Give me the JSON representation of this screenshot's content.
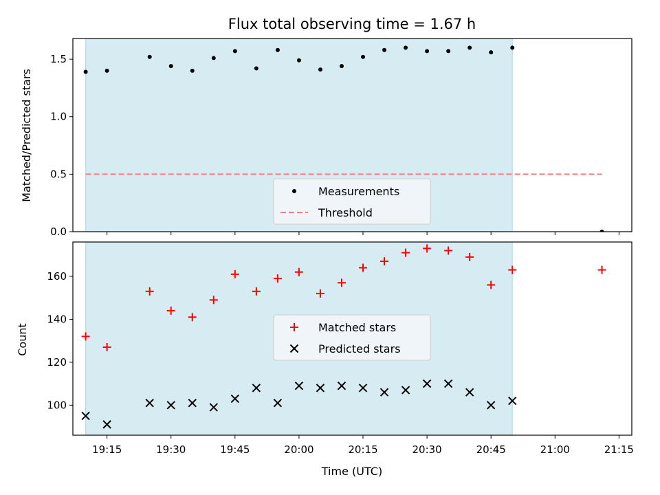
{
  "figure": {
    "title": "Flux total observing time = 1.67 h"
  },
  "colors": {
    "shade": "#add8e6",
    "measurement": "#000000",
    "threshold": "#f08080",
    "matched": "#ff0000",
    "predicted": "#000000",
    "legend_bg": "#f5f8fa"
  },
  "chart_data": [
    {
      "type": "scatter",
      "panel": "top",
      "title": "Flux total observing time = 1.67 h",
      "xlabel": "",
      "ylabel": "Matched/Predicted stars",
      "xlim": [
        "19:07",
        "21:18"
      ],
      "ylim": [
        0,
        1.68
      ],
      "yticks": [
        0.0,
        0.5,
        1.0,
        1.5
      ],
      "ytick_labels": [
        "0.0",
        "0.5",
        "1.0",
        "1.5"
      ],
      "shaded_span": {
        "x_start": "19:10",
        "x_end": "20:50"
      },
      "grid": false,
      "legend_placement": "lower center",
      "series": [
        {
          "name": "Measurements",
          "kind": "points",
          "x": [
            "19:10",
            "19:15",
            "19:25",
            "19:30",
            "19:35",
            "19:40",
            "19:45",
            "19:50",
            "19:55",
            "20:00",
            "20:05",
            "20:10",
            "20:15",
            "20:20",
            "20:25",
            "20:30",
            "20:35",
            "20:40",
            "20:45",
            "20:50",
            "21:11"
          ],
          "y": [
            1.39,
            1.4,
            1.52,
            1.44,
            1.4,
            1.51,
            1.57,
            1.42,
            1.58,
            1.49,
            1.41,
            1.44,
            1.52,
            1.58,
            1.6,
            1.57,
            1.57,
            1.6,
            1.56,
            1.6,
            0.0
          ]
        },
        {
          "name": "Threshold",
          "kind": "dashed-line",
          "x": [
            "19:10",
            "21:11"
          ],
          "y": [
            0.5,
            0.5
          ]
        }
      ]
    },
    {
      "type": "scatter",
      "panel": "bottom",
      "xlabel": "Time (UTC)",
      "ylabel": "Count",
      "xlim": [
        "19:07",
        "21:18"
      ],
      "ylim": [
        86,
        176
      ],
      "yticks": [
        100,
        120,
        140,
        160
      ],
      "ytick_labels": [
        "100",
        "120",
        "140",
        "160"
      ],
      "xticks": [
        "19:15",
        "19:30",
        "19:45",
        "20:00",
        "20:15",
        "20:30",
        "20:45",
        "21:00",
        "21:15"
      ],
      "xtick_labels": [
        "19:15",
        "19:30",
        "19:45",
        "20:00",
        "20:15",
        "20:30",
        "20:45",
        "21:00",
        "21:15"
      ],
      "shaded_span": {
        "x_start": "19:10",
        "x_end": "20:50"
      },
      "grid": false,
      "legend_placement": "center",
      "series": [
        {
          "name": "Matched stars",
          "marker": "plus",
          "x": [
            "19:10",
            "19:15",
            "19:25",
            "19:30",
            "19:35",
            "19:40",
            "19:45",
            "19:50",
            "19:55",
            "20:00",
            "20:05",
            "20:10",
            "20:15",
            "20:20",
            "20:25",
            "20:30",
            "20:35",
            "20:40",
            "20:45",
            "20:50",
            "21:11"
          ],
          "y": [
            132,
            127,
            153,
            144,
            141,
            149,
            161,
            153,
            159,
            162,
            152,
            157,
            164,
            167,
            171,
            173,
            172,
            169,
            156,
            163,
            163
          ]
        },
        {
          "name": "Predicted stars",
          "marker": "x",
          "x": [
            "19:10",
            "19:15",
            "19:25",
            "19:30",
            "19:35",
            "19:40",
            "19:45",
            "19:50",
            "19:55",
            "20:00",
            "20:05",
            "20:10",
            "20:15",
            "20:20",
            "20:25",
            "20:30",
            "20:35",
            "20:40",
            "20:45",
            "20:50"
          ],
          "y": [
            95,
            91,
            101,
            100,
            101,
            99,
            103,
            108,
            101,
            109,
            108,
            109,
            108,
            106,
            107,
            110,
            110,
            106,
            100,
            102
          ]
        }
      ]
    }
  ]
}
